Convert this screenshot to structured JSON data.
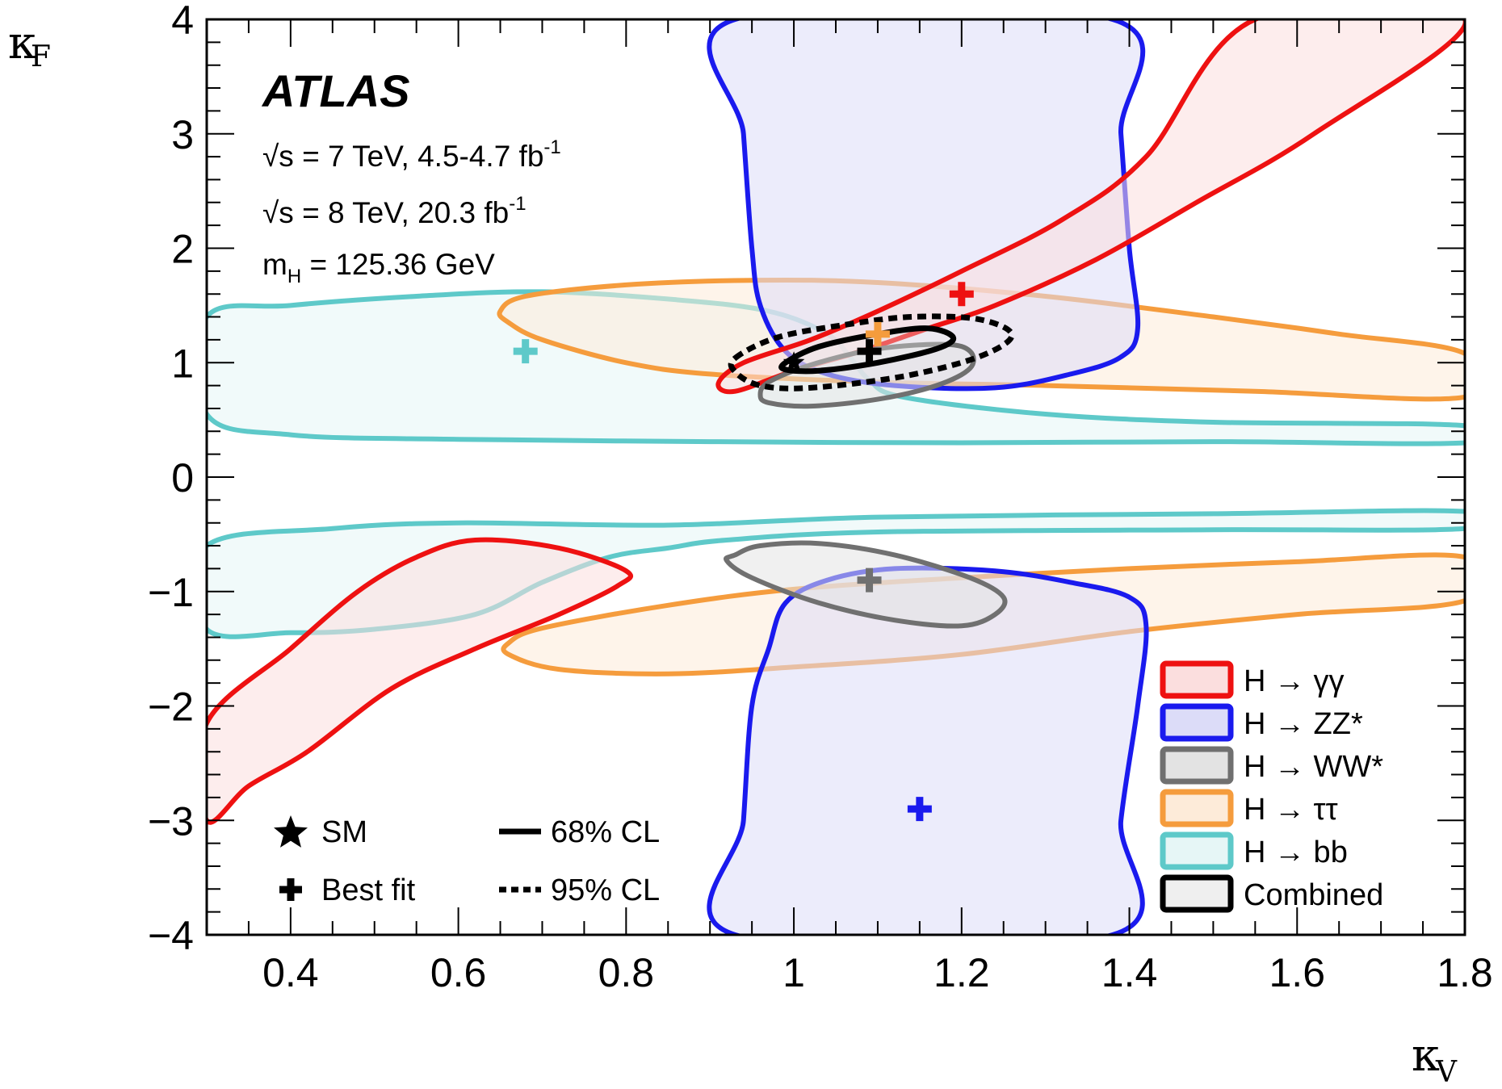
{
  "chart_data": {
    "type": "scatter",
    "experiment": "ATLAS",
    "annotations": [
      "√s = 7 TeV, 4.5-4.7 fb⁻¹",
      "√s = 8 TeV, 20.3 fb⁻¹",
      "mH = 125.36 GeV"
    ],
    "xlabel": "κV",
    "ylabel": "κF",
    "xlim": [
      0.3,
      1.8
    ],
    "ylim": [
      -4,
      4
    ],
    "xticks": [
      "0.4",
      "0.6",
      "0.8",
      "1",
      "1.2",
      "1.4",
      "1.6",
      "1.8"
    ],
    "yticks": [
      "−4",
      "−3",
      "−2",
      "−1",
      "0",
      "1",
      "2",
      "3",
      "4"
    ],
    "sm_point": {
      "x": 1.0,
      "y": 1.0,
      "label": "SM"
    },
    "series": [
      {
        "name": "H → γγ",
        "color": "#ee1111",
        "fill": "#fbdede",
        "best_fit": {
          "x": 1.2,
          "y": 1.6
        },
        "regions": [
          [
            [
              0.91,
              0.82
            ],
            [
              0.94,
              1.0
            ],
            [
              1.02,
              1.2
            ],
            [
              1.1,
              1.45
            ],
            [
              1.2,
              1.8
            ],
            [
              1.32,
              2.25
            ],
            [
              1.42,
              2.8
            ],
            [
              1.55,
              4.0
            ],
            [
              1.8,
              4.0
            ],
            [
              1.62,
              3.0
            ],
            [
              1.48,
              2.4
            ],
            [
              1.36,
              1.9
            ],
            [
              1.24,
              1.5
            ],
            [
              1.16,
              1.3
            ],
            [
              1.08,
              1.1
            ],
            [
              1.0,
              0.93
            ],
            [
              0.93,
              0.75
            ]
          ],
          [
            [
              0.3,
              -2.15
            ],
            [
              0.4,
              -1.5
            ],
            [
              0.48,
              -1.0
            ],
            [
              0.55,
              -0.7
            ],
            [
              0.62,
              -0.55
            ],
            [
              0.72,
              -0.62
            ],
            [
              0.8,
              -0.82
            ],
            [
              0.79,
              -0.95
            ],
            [
              0.72,
              -1.2
            ],
            [
              0.62,
              -1.5
            ],
            [
              0.52,
              -1.85
            ],
            [
              0.42,
              -2.4
            ],
            [
              0.35,
              -2.7
            ],
            [
              0.3,
              -3.0
            ]
          ]
        ]
      },
      {
        "name": "H → ZZ*",
        "color": "#1a1aee",
        "fill": "#dcdcf8",
        "best_fit": {
          "x": 1.15,
          "y": -2.9
        },
        "regions": [
          [
            [
              0.93,
              4.0
            ],
            [
              0.94,
              3.0
            ],
            [
              0.95,
              2.0
            ],
            [
              0.96,
              1.5
            ],
            [
              0.99,
              1.1
            ],
            [
              1.04,
              0.9
            ],
            [
              1.12,
              0.8
            ],
            [
              1.24,
              0.78
            ],
            [
              1.33,
              0.9
            ],
            [
              1.39,
              1.05
            ],
            [
              1.41,
              1.3
            ],
            [
              1.4,
              2.0
            ],
            [
              1.39,
              3.0
            ],
            [
              1.38,
              4.0
            ]
          ],
          [
            [
              0.93,
              -4.0
            ],
            [
              0.94,
              -3.0
            ],
            [
              0.95,
              -2.0
            ],
            [
              0.97,
              -1.5
            ],
            [
              0.99,
              -1.1
            ],
            [
              1.04,
              -0.9
            ],
            [
              1.12,
              -0.8
            ],
            [
              1.24,
              -0.82
            ],
            [
              1.33,
              -0.92
            ],
            [
              1.4,
              -1.05
            ],
            [
              1.42,
              -1.3
            ],
            [
              1.41,
              -2.0
            ],
            [
              1.39,
              -3.0
            ],
            [
              1.38,
              -4.0
            ]
          ]
        ]
      },
      {
        "name": "H → WW*",
        "color": "#707070",
        "fill": "#e3e3e3",
        "best_fit": {
          "x": 1.09,
          "y": -0.9
        },
        "regions": [
          [
            [
              0.96,
              0.72
            ],
            [
              0.97,
              0.65
            ],
            [
              1.02,
              0.62
            ],
            [
              1.1,
              0.68
            ],
            [
              1.17,
              0.8
            ],
            [
              1.21,
              0.95
            ],
            [
              1.21,
              1.1
            ],
            [
              1.18,
              1.16
            ],
            [
              1.1,
              1.12
            ],
            [
              1.02,
              0.98
            ],
            [
              0.97,
              0.83
            ]
          ],
          [
            [
              0.93,
              -0.68
            ],
            [
              0.96,
              -0.6
            ],
            [
              1.03,
              -0.58
            ],
            [
              1.12,
              -0.68
            ],
            [
              1.21,
              -0.88
            ],
            [
              1.25,
              -1.05
            ],
            [
              1.24,
              -1.2
            ],
            [
              1.2,
              -1.3
            ],
            [
              1.12,
              -1.25
            ],
            [
              1.03,
              -1.1
            ],
            [
              0.95,
              -0.88
            ],
            [
              0.92,
              -0.73
            ]
          ]
        ]
      },
      {
        "name": "H → ττ",
        "color": "#f59c3d",
        "fill": "#fdebd9",
        "best_fit": {
          "x": 1.1,
          "y": 1.25
        },
        "regions": [
          [
            [
              0.65,
              1.45
            ],
            [
              0.68,
              1.58
            ],
            [
              0.8,
              1.68
            ],
            [
              0.95,
              1.72
            ],
            [
              1.1,
              1.7
            ],
            [
              1.3,
              1.58
            ],
            [
              1.5,
              1.4
            ],
            [
              1.65,
              1.25
            ],
            [
              1.8,
              1.08
            ],
            [
              1.8,
              0.7
            ],
            [
              1.55,
              0.75
            ],
            [
              1.3,
              0.8
            ],
            [
              1.1,
              0.83
            ],
            [
              0.9,
              0.9
            ],
            [
              0.8,
              1.0
            ],
            [
              0.7,
              1.2
            ],
            [
              0.66,
              1.35
            ]
          ],
          [
            [
              0.66,
              -1.45
            ],
            [
              0.7,
              -1.32
            ],
            [
              0.85,
              -1.12
            ],
            [
              1.0,
              -0.98
            ],
            [
              1.2,
              -0.88
            ],
            [
              1.4,
              -0.8
            ],
            [
              1.6,
              -0.74
            ],
            [
              1.8,
              -0.7
            ],
            [
              1.8,
              -1.08
            ],
            [
              1.6,
              -1.2
            ],
            [
              1.4,
              -1.35
            ],
            [
              1.2,
              -1.55
            ],
            [
              1.0,
              -1.66
            ],
            [
              0.85,
              -1.72
            ],
            [
              0.72,
              -1.68
            ],
            [
              0.66,
              -1.55
            ]
          ]
        ]
      },
      {
        "name": "H → bb",
        "color": "#5ec9c9",
        "fill": "#e6f6f6",
        "best_fit": {
          "x": 0.68,
          "y": 1.1
        },
        "regions": [
          [
            [
              0.3,
              1.4
            ],
            [
              0.4,
              1.5
            ],
            [
              0.55,
              1.58
            ],
            [
              0.7,
              1.62
            ],
            [
              0.86,
              1.55
            ],
            [
              0.97,
              1.45
            ],
            [
              1.04,
              1.25
            ],
            [
              1.07,
              1.02
            ],
            [
              1.09,
              0.85
            ],
            [
              1.13,
              0.7
            ],
            [
              1.3,
              0.55
            ],
            [
              1.5,
              0.48
            ],
            [
              1.8,
              0.45
            ],
            [
              1.8,
              0.3
            ],
            [
              1.5,
              0.31
            ],
            [
              1.2,
              0.3
            ],
            [
              0.9,
              0.31
            ],
            [
              0.6,
              0.33
            ],
            [
              0.4,
              0.37
            ],
            [
              0.3,
              0.55
            ]
          ],
          [
            [
              0.3,
              -0.6
            ],
            [
              0.45,
              -0.45
            ],
            [
              0.6,
              -0.4
            ],
            [
              0.85,
              -0.42
            ],
            [
              1.1,
              -0.35
            ],
            [
              1.5,
              -0.32
            ],
            [
              1.8,
              -0.3
            ],
            [
              1.8,
              -0.45
            ],
            [
              1.5,
              -0.46
            ],
            [
              1.1,
              -0.48
            ],
            [
              0.92,
              -0.55
            ],
            [
              0.85,
              -0.62
            ],
            [
              0.78,
              -0.7
            ],
            [
              0.7,
              -0.92
            ],
            [
              0.62,
              -1.2
            ],
            [
              0.5,
              -1.33
            ],
            [
              0.4,
              -1.36
            ],
            [
              0.3,
              -1.33
            ]
          ]
        ]
      },
      {
        "name": "Combined",
        "color": "#000000",
        "fill": "#efefef",
        "best_fit": {
          "x": 1.09,
          "y": 1.1
        },
        "regions": [
          [
            [
              0.99,
              1.0
            ],
            [
              1.03,
              1.14
            ],
            [
              1.1,
              1.25
            ],
            [
              1.16,
              1.3
            ],
            [
              1.19,
              1.22
            ],
            [
              1.17,
              1.12
            ],
            [
              1.1,
              1.0
            ],
            [
              1.03,
              0.93
            ],
            [
              0.99,
              0.94
            ]
          ]
        ],
        "regions95": [
          [
            [
              0.93,
              1.04
            ],
            [
              0.98,
              1.22
            ],
            [
              1.06,
              1.33
            ],
            [
              1.14,
              1.4
            ],
            [
              1.22,
              1.38
            ],
            [
              1.26,
              1.24
            ],
            [
              1.22,
              1.05
            ],
            [
              1.13,
              0.88
            ],
            [
              1.02,
              0.78
            ],
            [
              0.96,
              0.8
            ],
            [
              0.93,
              0.92
            ]
          ]
        ]
      }
    ],
    "legend": {
      "position": "bottom-right",
      "entries": [
        "H → γγ",
        "H → ZZ*",
        "H → WW*",
        "H → ττ",
        "H → bb",
        "Combined"
      ]
    },
    "marker_legend": {
      "sm_label": "SM",
      "bestfit_label": "Best fit",
      "cl68_label": "68% CL",
      "cl95_label": "95% CL"
    }
  }
}
